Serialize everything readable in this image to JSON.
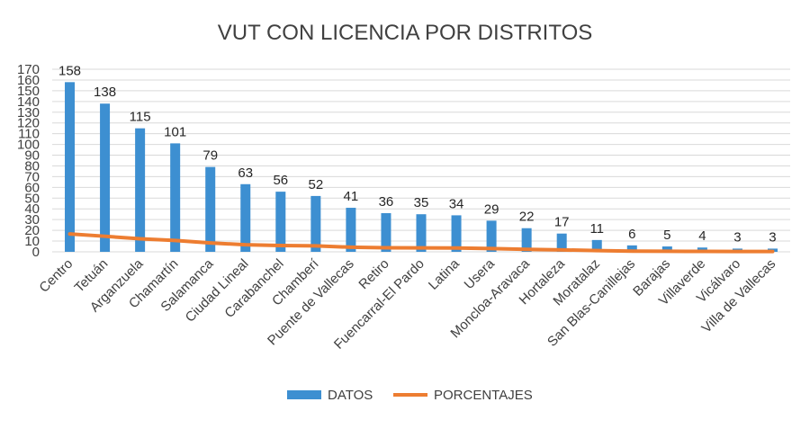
{
  "chart_data": {
    "type": "bar",
    "title": "VUT CON LICENCIA POR DISTRITOS",
    "xlabel": "",
    "ylabel": "",
    "ylim": [
      0,
      170
    ],
    "yticks": [
      0,
      10,
      20,
      30,
      40,
      50,
      60,
      70,
      80,
      90,
      100,
      110,
      120,
      130,
      140,
      150,
      160,
      170
    ],
    "grid": true,
    "legend_position": "bottom",
    "categories": [
      "Centro",
      "Tetuán",
      "Arganzuela",
      "Chamartín",
      "Salamanca",
      "Ciudad Lineal",
      "Carabanchel",
      "Chamberí",
      "Puente de Vallecas",
      "Retiro",
      "Fuencarral-El Pardo",
      "Latina",
      "Usera",
      "Moncloa-Aravaca",
      "Hortaleza",
      "Moratalaz",
      "San Blas-Canillejas",
      "Barajas",
      "Villaverde",
      "Vicálvaro",
      "Villa de Vallecas"
    ],
    "series": [
      {
        "name": "DATOS",
        "kind": "bar",
        "color": "#3d8fd1",
        "values": [
          158,
          138,
          115,
          101,
          79,
          63,
          56,
          52,
          41,
          36,
          35,
          34,
          29,
          22,
          17,
          11,
          6,
          5,
          4,
          3,
          3
        ]
      },
      {
        "name": "PORCENTAJES",
        "kind": "line",
        "color": "#ed7d31",
        "values": [
          16.6,
          14.5,
          12.1,
          10.6,
          8.3,
          6.6,
          5.9,
          5.5,
          4.3,
          3.8,
          3.7,
          3.6,
          3.0,
          2.3,
          1.8,
          1.2,
          0.6,
          0.5,
          0.4,
          0.3,
          0.3
        ]
      }
    ],
    "colors": {
      "bar": "#3d8fd1",
      "line": "#ed7d31",
      "grid": "#d9d9d9",
      "text": "#404040"
    }
  }
}
